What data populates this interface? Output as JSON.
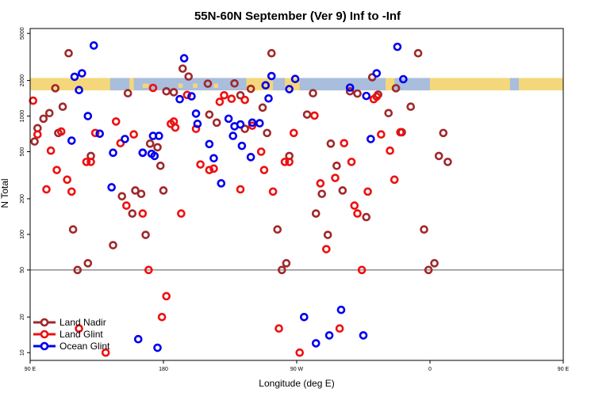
{
  "chart_data": {
    "type": "scatter",
    "title": "55N-60N September (Ver 9)   Inf to -Inf",
    "xlabel": "Longitude (deg E)",
    "ylabel": "N Total",
    "xscale": "linear",
    "yscale": "log",
    "xlim": [
      90,
      450
    ],
    "ylim": [
      8.6,
      5500
    ],
    "x_ticks": [
      {
        "value": 90,
        "label": "90 E"
      },
      {
        "value": 180,
        "label": "180"
      },
      {
        "value": 270,
        "label": "90 W"
      },
      {
        "value": 360,
        "label": "0"
      },
      {
        "value": 450,
        "label": "90 E"
      }
    ],
    "y_ticks": [
      {
        "value": 10,
        "label": "10"
      },
      {
        "value": 20,
        "label": "20"
      },
      {
        "value": 50,
        "label": "50"
      },
      {
        "value": 100,
        "label": "100"
      },
      {
        "value": 200,
        "label": "200"
      },
      {
        "value": 500,
        "label": "500"
      },
      {
        "value": 1000,
        "label": "1000"
      },
      {
        "value": 2000,
        "label": "2000"
      },
      {
        "value": 5000,
        "label": "5000"
      }
    ],
    "reference_line": {
      "y": 50
    },
    "land_ocean_band": {
      "y_range": [
        1650,
        2100
      ],
      "land_color": "#f5d77b",
      "ocean_color": "#a9bddc"
    },
    "legend": {
      "position": "bottom-left"
    },
    "series": [
      {
        "name": "Land Nadir",
        "color": "#a0282a",
        "points": [
          [
            93,
            610
          ],
          [
            95,
            790
          ],
          [
            99,
            950
          ],
          [
            103,
            1060
          ],
          [
            107,
            1720
          ],
          [
            109,
            720
          ],
          [
            112,
            1200
          ],
          [
            116,
            3400
          ],
          [
            119,
            110
          ],
          [
            122,
            50
          ],
          [
            129,
            57
          ],
          [
            131,
            460
          ],
          [
            146,
            81
          ],
          [
            152,
            210
          ],
          [
            156,
            1560
          ],
          [
            159,
            150
          ],
          [
            161,
            235
          ],
          [
            165,
            220
          ],
          [
            168,
            99
          ],
          [
            171,
            585
          ],
          [
            176,
            545
          ],
          [
            178,
            380
          ],
          [
            180,
            235
          ],
          [
            182,
            1620
          ],
          [
            187,
            1590
          ],
          [
            193,
            2520
          ],
          [
            197,
            2160
          ],
          [
            210,
            1880
          ],
          [
            211,
            1030
          ],
          [
            216,
            880
          ],
          [
            228,
            1890
          ],
          [
            232,
            1500
          ],
          [
            235,
            780
          ],
          [
            239,
            1700
          ],
          [
            247,
            1180
          ],
          [
            250,
            720
          ],
          [
            253,
            3400
          ],
          [
            257,
            110
          ],
          [
            260,
            50
          ],
          [
            263,
            57
          ],
          [
            265,
            460
          ],
          [
            277,
            1030
          ],
          [
            281,
            1560
          ],
          [
            283,
            150
          ],
          [
            287,
            220
          ],
          [
            291,
            99
          ],
          [
            293,
            585
          ],
          [
            297,
            380
          ],
          [
            301,
            235
          ],
          [
            306,
            1620
          ],
          [
            311,
            1550
          ],
          [
            317,
            140
          ],
          [
            321,
            2130
          ],
          [
            325,
            1520
          ],
          [
            332,
            1060
          ],
          [
            337,
            1720
          ],
          [
            341,
            730
          ],
          [
            347,
            1200
          ],
          [
            352,
            3400
          ],
          [
            356,
            110
          ],
          [
            359,
            50
          ],
          [
            363,
            57
          ],
          [
            366,
            460
          ],
          [
            369,
            720
          ],
          [
            372,
            410
          ]
        ]
      },
      {
        "name": "Land Glint",
        "color": "#ee1010",
        "points": [
          [
            92,
            1350
          ],
          [
            95,
            700
          ],
          [
            101,
            240
          ],
          [
            104,
            510
          ],
          [
            108,
            350
          ],
          [
            111,
            740
          ],
          [
            115,
            290
          ],
          [
            118,
            230
          ],
          [
            123,
            16
          ],
          [
            128,
            410
          ],
          [
            131,
            410
          ],
          [
            134,
            720
          ],
          [
            141,
            10
          ],
          [
            148,
            900
          ],
          [
            151,
            590
          ],
          [
            155,
            175
          ],
          [
            160,
            700
          ],
          [
            166,
            150
          ],
          [
            170,
            50
          ],
          [
            173,
            1730
          ],
          [
            179,
            20
          ],
          [
            182,
            30
          ],
          [
            185,
            860
          ],
          [
            187,
            900
          ],
          [
            188,
            800
          ],
          [
            192,
            150
          ],
          [
            196,
            1510
          ],
          [
            202,
            780
          ],
          [
            205,
            390
          ],
          [
            211,
            350
          ],
          [
            214,
            360
          ],
          [
            218,
            1320
          ],
          [
            221,
            1500
          ],
          [
            226,
            1400
          ],
          [
            232,
            240
          ],
          [
            235,
            1370
          ],
          [
            240,
            830
          ],
          [
            246,
            500
          ],
          [
            248,
            350
          ],
          [
            254,
            230
          ],
          [
            258,
            16
          ],
          [
            262,
            410
          ],
          [
            265,
            410
          ],
          [
            268,
            720
          ],
          [
            272,
            10
          ],
          [
            282,
            1010
          ],
          [
            286,
            270
          ],
          [
            290,
            75
          ],
          [
            296,
            300
          ],
          [
            299,
            16
          ],
          [
            302,
            590
          ],
          [
            307,
            410
          ],
          [
            309,
            175
          ],
          [
            311,
            150
          ],
          [
            314,
            50
          ],
          [
            318,
            230
          ],
          [
            322,
            1390
          ],
          [
            324,
            1460
          ],
          [
            327,
            700
          ],
          [
            333,
            510
          ],
          [
            336,
            290
          ],
          [
            340,
            730
          ]
        ]
      },
      {
        "name": "Ocean Glint",
        "color": "#0000ee",
        "points": [
          [
            163,
            13
          ],
          [
            176,
            11
          ],
          [
            166,
            490
          ],
          [
            174,
            460
          ],
          [
            173,
            680
          ],
          [
            172,
            480
          ],
          [
            191,
            1390
          ],
          [
            194,
            3080
          ],
          [
            199,
            1470
          ],
          [
            203,
            860
          ],
          [
            211,
            580
          ],
          [
            214,
            440
          ],
          [
            219,
            270
          ],
          [
            224,
            950
          ],
          [
            228,
            820
          ],
          [
            232,
            850
          ],
          [
            233,
            560
          ],
          [
            240,
            880
          ],
          [
            245,
            870
          ],
          [
            249,
            1820
          ],
          [
            251,
            1410
          ],
          [
            227,
            680
          ],
          [
            239,
            450
          ],
          [
            253,
            2180
          ],
          [
            265,
            1690
          ],
          [
            269,
            2060
          ],
          [
            275,
            20
          ],
          [
            283,
            12
          ],
          [
            292,
            14
          ],
          [
            306,
            1740
          ],
          [
            317,
            1480
          ],
          [
            320,
            640
          ],
          [
            324,
            2300
          ],
          [
            338,
            3850
          ],
          [
            342,
            2050
          ],
          [
            133,
            3950
          ],
          [
            129,
            1000
          ],
          [
            137,
            710
          ],
          [
            146,
            490
          ],
          [
            154,
            640
          ],
          [
            123,
            1660
          ],
          [
            120,
            2150
          ],
          [
            125,
            2300
          ],
          [
            118,
            620
          ],
          [
            300,
            23
          ],
          [
            315,
            14
          ],
          [
            177,
            680
          ],
          [
            202,
            1050
          ],
          [
            145,
            250
          ],
          [
            166,
            490
          ]
        ]
      }
    ]
  }
}
